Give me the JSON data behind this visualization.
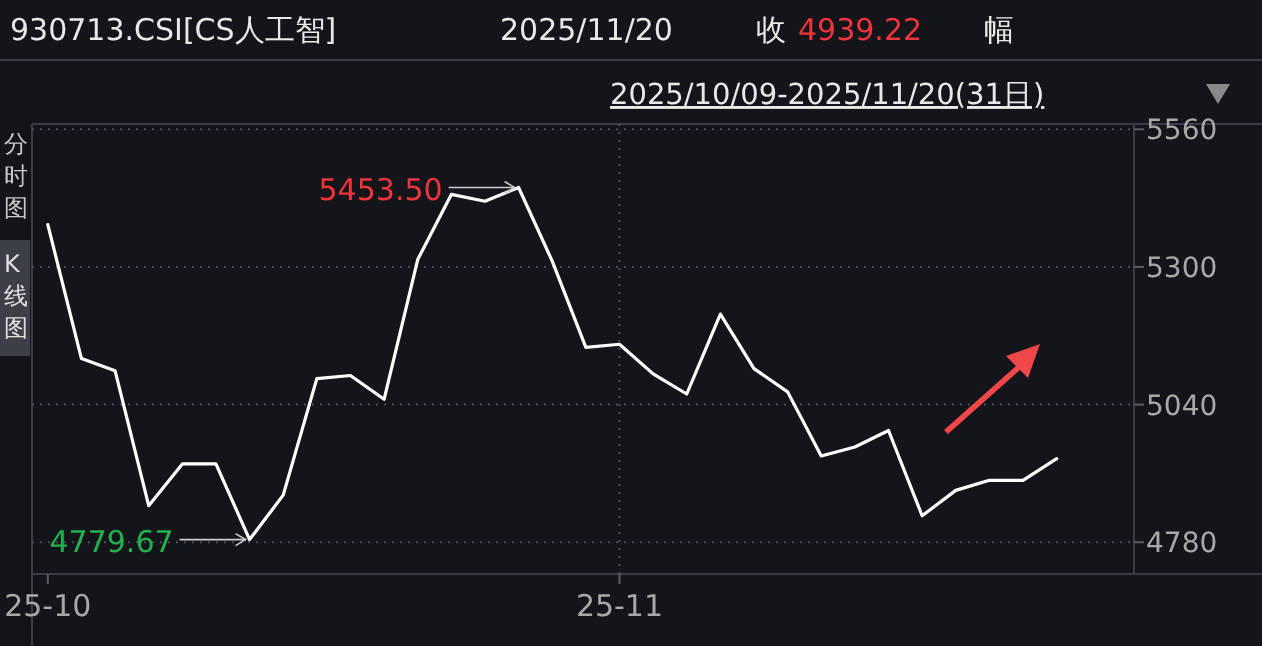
{
  "chart_data": {
    "type": "line",
    "title": "930713.CSI[CS人工智]",
    "subtitle": "2025/10/09-2025/11/20(31日)",
    "categories": [
      "25-10",
      null,
      null,
      null,
      null,
      null,
      null,
      null,
      null,
      null,
      null,
      null,
      null,
      null,
      null,
      null,
      null,
      "25-11",
      null,
      null,
      null,
      null,
      null,
      null,
      null,
      null,
      null,
      null,
      null,
      null,
      null
    ],
    "series": [
      {
        "color": "#ffffff",
        "values": [
          5380,
          5127,
          5104,
          4849,
          4928,
          4928,
          4785,
          4869,
          5089,
          5095,
          5050,
          5314,
          5437,
          5424,
          5450,
          5311,
          5148,
          5154,
          5098,
          5060,
          5211,
          5108,
          5064,
          4943,
          4960,
          4991,
          4830,
          4878,
          4897,
          4897,
          4938
        ]
      }
    ],
    "ylim": [
      4720,
      5570
    ],
    "yticks": [
      4780,
      5040,
      5300,
      5560
    ],
    "grid": "y",
    "ref_lines": [
      {
        "axis": "x",
        "value": "25-11",
        "line_style": "dotted",
        "color": "#4a4d55"
      }
    ],
    "annotations": [
      "2025/11/20",
      "收",
      "4939.22",
      "幅",
      "分时图",
      "K线图",
      "5453.50",
      "4779.67"
    ],
    "marker": "none",
    "line_style": "solid"
  }
}
